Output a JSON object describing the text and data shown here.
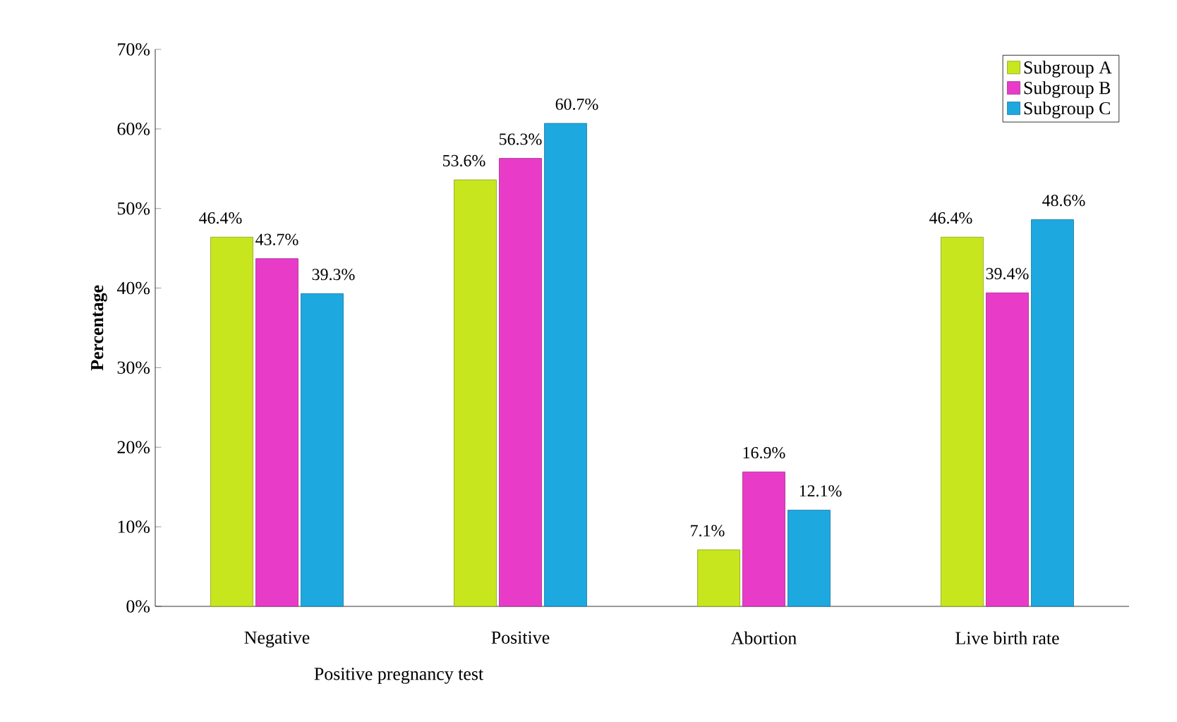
{
  "chart_data": {
    "type": "bar",
    "ylabel": "Percentage",
    "categories": [
      "Negative",
      "Positive",
      "Abortion",
      "Live birth rate"
    ],
    "annotations": [
      "Positive pregnancy test"
    ],
    "series": [
      {
        "name": "Subgroup A",
        "color": "#c8e61e",
        "values": [
          46.4,
          53.6,
          7.1,
          46.4
        ],
        "value_labels": [
          "46.4%",
          "53.6%",
          "7.1%",
          "46.4%"
        ]
      },
      {
        "name": "Subgroup B",
        "color": "#e83cc8",
        "values": [
          43.7,
          56.3,
          16.9,
          39.4
        ],
        "value_labels": [
          "43.7%",
          "56.3%",
          "16.9%",
          "39.4%"
        ]
      },
      {
        "name": "Subgroup C",
        "color": "#1ea8e0",
        "values": [
          39.3,
          60.7,
          12.1,
          48.6
        ],
        "value_labels": [
          "39.3%",
          "60.7%",
          "12.1%",
          "48.6%"
        ]
      }
    ],
    "ylim": [
      0,
      70
    ],
    "yticks": [
      {
        "value": 0,
        "label": "0%"
      },
      {
        "value": 10,
        "label": "10%"
      },
      {
        "value": 20,
        "label": "20%"
      },
      {
        "value": 30,
        "label": "30%"
      },
      {
        "value": 40,
        "label": "40%"
      },
      {
        "value": 50,
        "label": "50%"
      },
      {
        "value": 60,
        "label": "60%"
      },
      {
        "value": 70,
        "label": "70%"
      }
    ],
    "legend": "top right"
  }
}
